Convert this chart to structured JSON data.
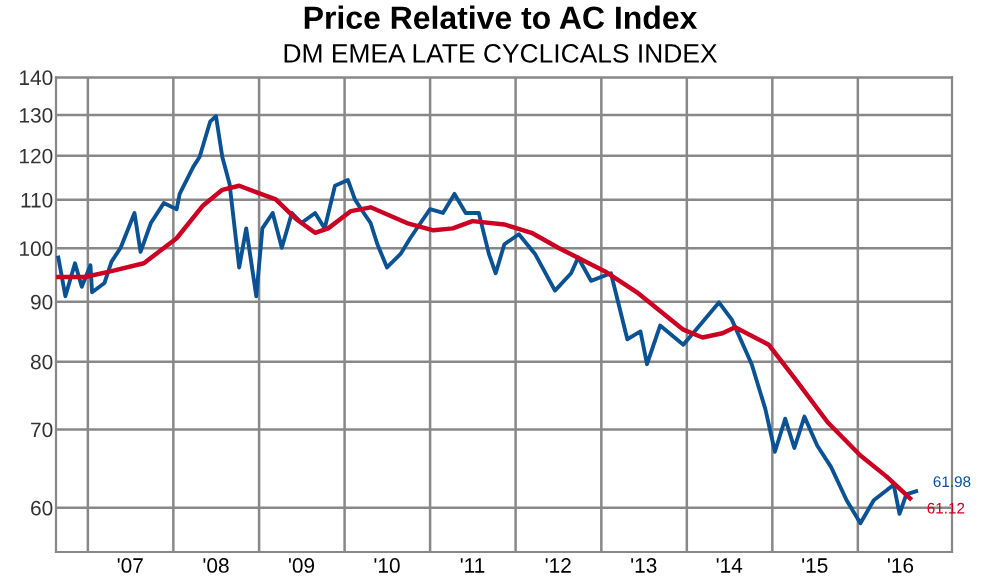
{
  "chart_data": {
    "type": "line",
    "title": "Price Relative to AC Index",
    "subtitle": "DM EMEA LATE CYCLICALS INDEX",
    "log": "y",
    "grid": true,
    "line_style": "solid",
    "marker": "none",
    "xlim": [
      "2006-08-18",
      "2017-02-06"
    ],
    "ylim": [
      55,
      140
    ],
    "xticks": [
      {
        "value": "2007-01-01",
        "label": null
      },
      {
        "value": "2007-07-01",
        "label": "'07"
      },
      {
        "value": "2008-01-01",
        "label": null
      },
      {
        "value": "2008-07-01",
        "label": "'08"
      },
      {
        "value": "2009-01-01",
        "label": null
      },
      {
        "value": "2009-07-01",
        "label": "'09"
      },
      {
        "value": "2010-01-01",
        "label": null
      },
      {
        "value": "2010-07-01",
        "label": "'10"
      },
      {
        "value": "2011-01-01",
        "label": null
      },
      {
        "value": "2011-07-01",
        "label": "'11"
      },
      {
        "value": "2012-01-01",
        "label": null
      },
      {
        "value": "2012-07-01",
        "label": "'12"
      },
      {
        "value": "2013-01-01",
        "label": null
      },
      {
        "value": "2013-07-01",
        "label": "'13"
      },
      {
        "value": "2014-01-01",
        "label": null
      },
      {
        "value": "2014-07-01",
        "label": "'14"
      },
      {
        "value": "2015-01-01",
        "label": null
      },
      {
        "value": "2015-07-01",
        "label": "'15"
      },
      {
        "value": "2016-01-01",
        "label": null
      },
      {
        "value": "2016-07-01",
        "label": "'16"
      }
    ],
    "yticks": [
      60,
      70,
      80,
      90,
      100,
      110,
      120,
      130,
      140
    ],
    "series": [
      {
        "color": "#0a5294",
        "x": [
          "2006-08-28",
          "2006-09-27",
          "2006-11-07",
          "2006-12-06",
          "2007-01-12",
          "2007-01-19",
          "2007-03-13",
          "2007-04-12",
          "2007-05-21",
          "2007-07-19",
          "2007-08-14",
          "2007-09-27",
          "2007-11-21",
          "2008-01-15",
          "2008-01-28",
          "2008-03-27",
          "2008-04-22",
          "2008-06-06",
          "2008-07-01",
          "2008-07-28",
          "2008-08-28",
          "2008-10-08",
          "2008-11-07",
          "2008-12-20",
          "2009-01-15",
          "2009-02-28",
          "2009-04-08",
          "2009-05-21",
          "2009-07-01",
          "2009-08-28",
          "2009-10-08",
          "2009-11-21",
          "2010-01-15",
          "2010-02-14",
          "2010-03-13",
          "2010-04-22",
          "2010-05-21",
          "2010-07-01",
          "2010-08-28",
          "2010-10-08",
          "2010-11-21",
          "2011-01-01",
          "2011-02-25",
          "2011-04-15",
          "2011-06-02",
          "2011-07-28",
          "2011-09-09",
          "2011-10-08",
          "2011-11-14",
          "2012-01-15",
          "2012-03-24",
          "2012-06-17",
          "2012-08-25",
          "2012-09-24",
          "2012-11-18",
          "2013-02-11",
          "2013-04-22",
          "2013-06-17",
          "2013-07-15",
          "2013-09-09",
          "2013-12-17",
          "2014-03-09",
          "2014-05-18",
          "2014-07-12",
          "2014-10-05",
          "2014-12-02",
          "2015-01-12",
          "2015-02-25",
          "2015-04-05",
          "2015-05-18",
          "2015-07-12",
          "2015-09-09",
          "2015-11-14",
          "2016-01-12",
          "2016-03-09",
          "2016-05-03",
          "2016-06-02",
          "2016-06-27",
          "2016-07-26",
          "2016-09-06"
        ],
        "values": [
          98.2,
          91.0,
          97.1,
          92.7,
          96.7,
          91.7,
          93.4,
          97.4,
          100.1,
          107.2,
          99.3,
          105.1,
          109.3,
          108.0,
          111.3,
          117.5,
          119.7,
          128.3,
          129.7,
          119.7,
          113.5,
          96.3,
          104.0,
          91.0,
          104.0,
          107.2,
          100.1,
          107.2,
          105.1,
          107.2,
          104.0,
          113.1,
          114.4,
          110.1,
          108.0,
          105.1,
          100.8,
          96.3,
          98.9,
          102.0,
          105.1,
          108.0,
          107.2,
          111.3,
          107.2,
          107.2,
          98.9,
          95.2,
          100.8,
          102.8,
          98.9,
          92.0,
          95.2,
          98.2,
          93.8,
          95.2,
          83.6,
          84.9,
          79.6,
          85.9,
          82.7,
          86.5,
          89.9,
          86.9,
          79.6,
          72.9,
          67.0,
          71.5,
          67.5,
          71.8,
          67.8,
          65.0,
          60.9,
          58.2,
          60.9,
          62.1,
          62.8,
          59.3,
          61.6,
          61.98
        ]
      },
      {
        "color": "#cc0022",
        "x": [
          "2006-08-28",
          "2006-12-20",
          "2007-04-12",
          "2007-08-28",
          "2008-01-15",
          "2008-05-07",
          "2008-07-28",
          "2008-10-08",
          "2009-03-13",
          "2009-06-06",
          "2009-08-28",
          "2009-10-23",
          "2010-01-28",
          "2010-04-22",
          "2010-09-24",
          "2011-01-15",
          "2011-04-08",
          "2011-07-01",
          "2011-11-14",
          "2012-03-09",
          "2012-07-01",
          "2013-01-15",
          "2013-06-02",
          "2013-12-17",
          "2014-03-09",
          "2014-06-02",
          "2014-07-26",
          "2014-12-17",
          "2015-04-05",
          "2015-08-25",
          "2016-01-12",
          "2016-05-03",
          "2016-08-11"
        ],
        "values": [
          94.5,
          94.5,
          95.6,
          97.1,
          102.0,
          108.8,
          112.2,
          113.1,
          110.1,
          106.0,
          103.1,
          104.0,
          107.6,
          108.4,
          105.1,
          103.6,
          104.0,
          105.5,
          104.8,
          103.1,
          100.1,
          95.6,
          91.7,
          85.2,
          83.9,
          84.6,
          85.6,
          82.7,
          77.5,
          71.0,
          66.5,
          63.8,
          61.12
        ]
      }
    ],
    "annotations": [
      {
        "text": "61.98",
        "x": "2016-09-06",
        "y": 61.98
      },
      {
        "text": "61.12",
        "x": "2016-08-11",
        "y": 61.12
      }
    ]
  }
}
